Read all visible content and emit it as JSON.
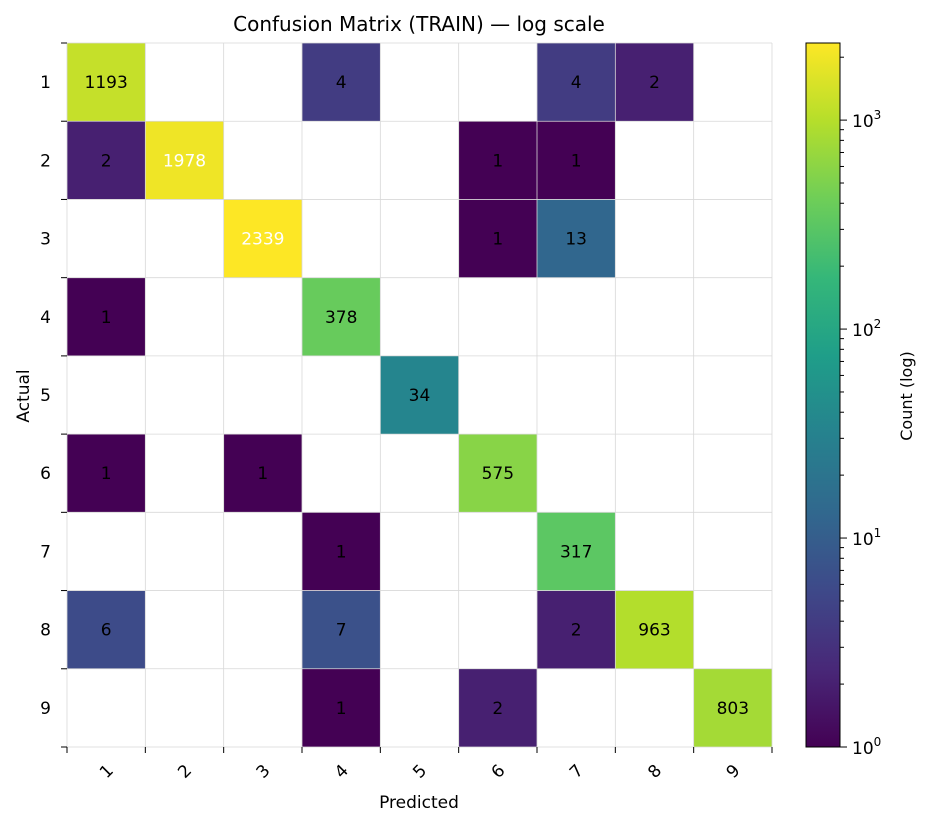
{
  "chart_data": {
    "type": "heatmap",
    "title": "Confusion Matrix (TRAIN) — log scale",
    "xlabel": "Predicted",
    "ylabel": "Actual",
    "x_categories": [
      "1",
      "2",
      "3",
      "4",
      "5",
      "6",
      "7",
      "8",
      "9"
    ],
    "y_categories": [
      "1",
      "2",
      "3",
      "4",
      "5",
      "6",
      "7",
      "8",
      "9"
    ],
    "values": [
      [
        1193,
        0,
        0,
        4,
        0,
        0,
        4,
        2,
        0
      ],
      [
        2,
        1978,
        0,
        0,
        0,
        1,
        1,
        0,
        0
      ],
      [
        0,
        0,
        2339,
        0,
        0,
        1,
        13,
        0,
        0
      ],
      [
        1,
        0,
        0,
        378,
        0,
        0,
        0,
        0,
        0
      ],
      [
        0,
        0,
        0,
        0,
        34,
        0,
        0,
        0,
        0
      ],
      [
        1,
        0,
        1,
        0,
        0,
        575,
        0,
        0,
        0
      ],
      [
        0,
        0,
        0,
        1,
        0,
        0,
        317,
        0,
        0
      ],
      [
        6,
        0,
        0,
        7,
        0,
        0,
        2,
        963,
        0
      ],
      [
        0,
        0,
        0,
        1,
        0,
        2,
        0,
        0,
        803
      ]
    ],
    "zero_cells": "blank",
    "color_scale": "log",
    "colormap": "viridis",
    "colorbar": {
      "label": "Count (log)",
      "range": [
        1,
        2339
      ],
      "ticks": [
        {
          "value": 1,
          "base": "10",
          "exp": "0"
        },
        {
          "value": 10,
          "base": "10",
          "exp": "1"
        },
        {
          "value": 100,
          "base": "10",
          "exp": "2"
        },
        {
          "value": 1000,
          "base": "10",
          "exp": "3"
        }
      ]
    },
    "grid": true,
    "x_tick_rotation_deg": 45
  }
}
